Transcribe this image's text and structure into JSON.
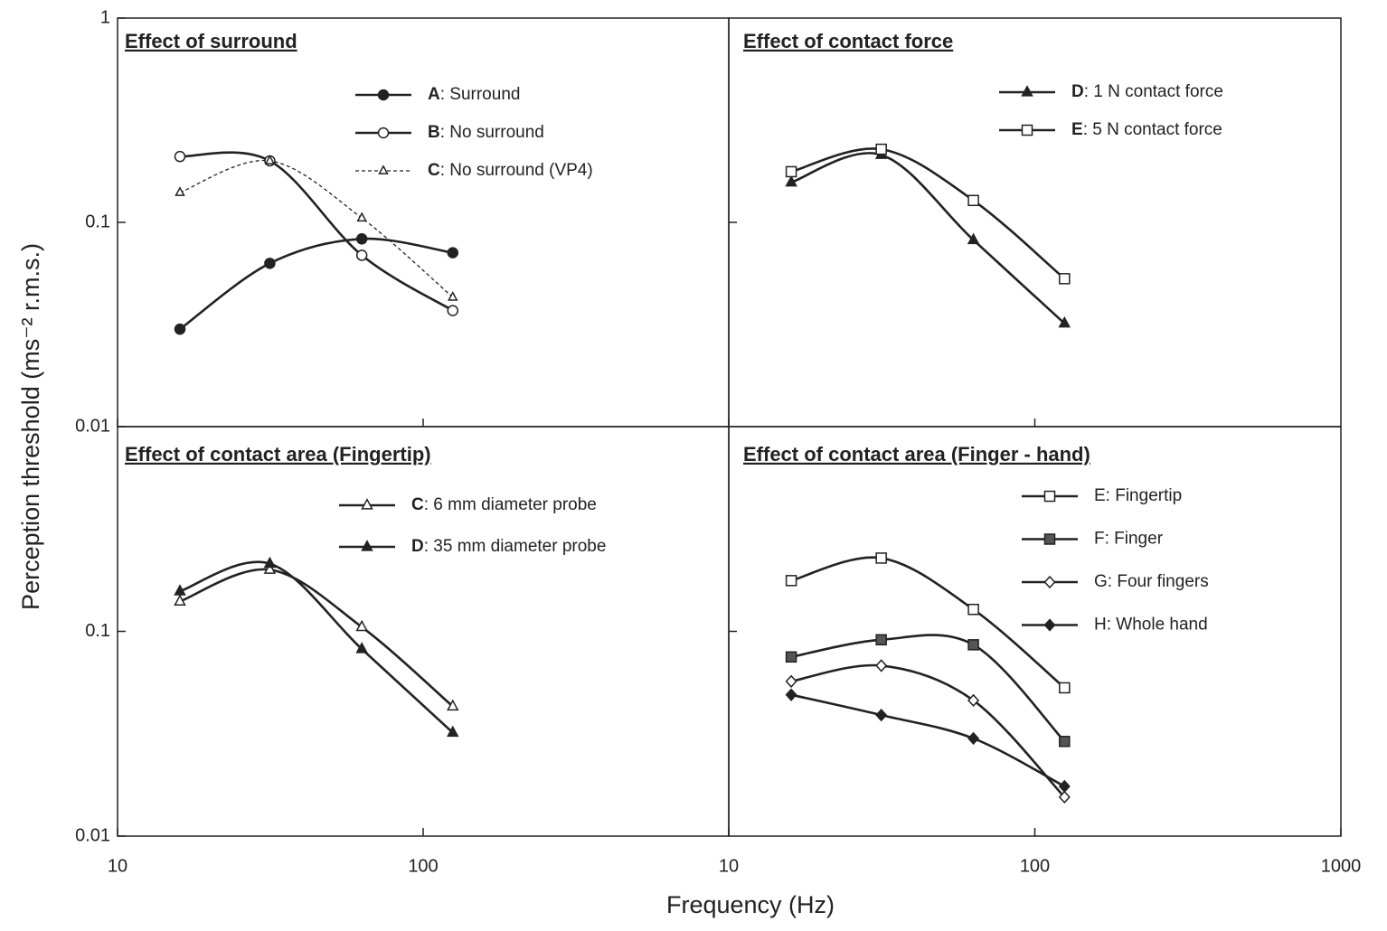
{
  "x_label": "Frequency (Hz)",
  "y_label": "Perception threshold (ms⁻² r.m.s.)",
  "chart_data": [
    {
      "type": "line",
      "title": "Effect of surround",
      "log_x": true,
      "log_y": true,
      "xlim": [
        10,
        1000
      ],
      "ylim": [
        0.01,
        1
      ],
      "xticks": [
        10,
        100
      ],
      "yticks": [
        1,
        0.1,
        0.01
      ],
      "show_xtick_labels": false,
      "show_ytick_labels": true,
      "legend_key_bold": true,
      "x": [
        16,
        31.5,
        63,
        125
      ],
      "series": [
        {
          "name": "A: Surround",
          "color": "#222222",
          "marker": "circle",
          "filled": true,
          "dashed": false,
          "values": [
            0.03,
            0.063,
            0.083,
            0.071
          ]
        },
        {
          "name": "B: No surround",
          "color": "#222222",
          "marker": "circle",
          "filled": false,
          "dashed": false,
          "values": [
            0.21,
            0.2,
            0.069,
            0.037
          ]
        },
        {
          "name": "C: No surround (VP4)",
          "color": "#222222",
          "marker": "triangle",
          "filled": false,
          "dashed": true,
          "values": [
            0.14,
            0.2,
            0.105,
            0.043
          ]
        }
      ]
    },
    {
      "type": "line",
      "title": "Effect of contact force",
      "log_x": true,
      "log_y": true,
      "xlim": [
        10,
        1000
      ],
      "ylim": [
        0.01,
        1
      ],
      "xticks": [
        10,
        100
      ],
      "yticks": [
        0.1
      ],
      "show_xtick_labels": false,
      "show_ytick_labels": false,
      "legend_key_bold": true,
      "x": [
        16,
        31.5,
        63,
        125
      ],
      "series": [
        {
          "name": "D: 1 N contact force",
          "color": "#222222",
          "marker": "triangle",
          "filled": true,
          "dashed": false,
          "values": [
            0.157,
            0.214,
            0.082,
            0.032
          ]
        },
        {
          "name": "E: 5 N contact force",
          "color": "#222222",
          "marker": "square",
          "filled": false,
          "dashed": false,
          "values": [
            0.177,
            0.228,
            0.128,
            0.053
          ]
        }
      ]
    },
    {
      "type": "line",
      "title": "Effect of contact area (Fingertip)",
      "log_x": true,
      "log_y": true,
      "xlim": [
        10,
        1000
      ],
      "ylim": [
        0.01,
        1
      ],
      "xticks": [
        10,
        100
      ],
      "yticks": [
        0.1,
        0.01
      ],
      "show_xtick_labels": true,
      "show_ytick_labels": true,
      "legend_key_bold": true,
      "x": [
        16,
        31.5,
        63,
        125
      ],
      "series": [
        {
          "name": "C: 6 mm diameter probe",
          "color": "#222222",
          "marker": "triangle",
          "filled": false,
          "dashed": false,
          "values": [
            0.14,
            0.2,
            0.105,
            0.043
          ]
        },
        {
          "name": "D: 35 mm diameter probe",
          "color": "#222222",
          "marker": "triangle",
          "filled": true,
          "dashed": false,
          "values": [
            0.157,
            0.214,
            0.082,
            0.032
          ]
        }
      ]
    },
    {
      "type": "line",
      "title": "Effect of contact area (Finger - hand)",
      "log_x": true,
      "log_y": true,
      "xlim": [
        10,
        1000
      ],
      "ylim": [
        0.01,
        1
      ],
      "xticks": [
        10,
        100,
        1000
      ],
      "yticks": [
        0.1
      ],
      "show_xtick_labels": true,
      "show_ytick_labels": false,
      "legend_key_bold": false,
      "x": [
        16,
        31.5,
        63,
        125
      ],
      "series": [
        {
          "name": "E: Fingertip",
          "color": "#222222",
          "marker": "square",
          "filled": false,
          "dashed": false,
          "values": [
            0.177,
            0.228,
            0.128,
            0.053
          ]
        },
        {
          "name": "F: Finger",
          "color": "#555555",
          "marker": "square",
          "filled": true,
          "dashed": false,
          "values": [
            0.075,
            0.091,
            0.086,
            0.029
          ]
        },
        {
          "name": "G: Four fingers",
          "color": "#222222",
          "marker": "diamond",
          "filled": false,
          "dashed": false,
          "values": [
            0.057,
            0.068,
            0.046,
            0.0155
          ]
        },
        {
          "name": "H: Whole hand",
          "color": "#222222",
          "marker": "diamond",
          "filled": true,
          "dashed": false,
          "values": [
            0.049,
            0.039,
            0.03,
            0.0175
          ]
        }
      ]
    }
  ]
}
